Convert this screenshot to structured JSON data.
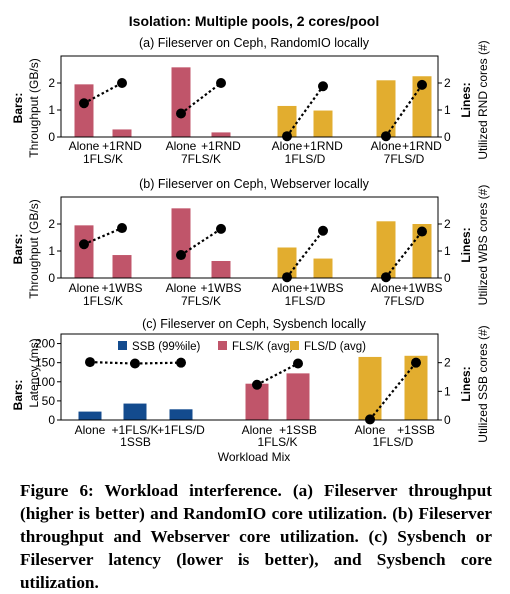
{
  "figure": {
    "title": "Isolation: Multiple pools, 2 cores/pool",
    "colors": {
      "red": "#c0556a",
      "gold": "#e2ad2f",
      "blue": "#134b8e"
    },
    "caption": "Figure 6: Workload interference. (a) Fileserver throughput (higher is better) and RandomIO core utilization. (b) Fileserver throughput and Webserver core utilization. (c) Sysbench or Fileserver latency (lower is better), and Sysbench core utilization."
  },
  "chart_data": [
    {
      "type": "bar",
      "title": "(a) Fileserver on Ceph, RandomIO locally",
      "ylabel": [
        "Bars:",
        "Throughput (GB/s)"
      ],
      "y2label": [
        "Lines:",
        "Utilized RND cores (#)"
      ],
      "ylim": [
        0,
        3
      ],
      "yticks": [
        0,
        1,
        2
      ],
      "y2lim": [
        0,
        3
      ],
      "y2ticks": [
        0,
        1,
        2
      ],
      "groups": [
        {
          "label": "1FLS/K",
          "categories": [
            "Alone",
            "+1RND"
          ],
          "bars": [
            1.95,
            0.28
          ],
          "line": [
            1.25,
            2.0
          ],
          "color": "red"
        },
        {
          "label": "7FLS/K",
          "categories": [
            "Alone",
            "+1RND"
          ],
          "bars": [
            2.58,
            0.17
          ],
          "line": [
            0.87,
            2.0
          ],
          "color": "red"
        },
        {
          "label": "1FLS/D",
          "categories": [
            "Alone",
            "+1RND"
          ],
          "bars": [
            1.15,
            0.98
          ],
          "line": [
            0.03,
            1.88
          ],
          "color": "gold"
        },
        {
          "label": "7FLS/D",
          "categories": [
            "Alone",
            "+1RND"
          ],
          "bars": [
            2.1,
            2.25
          ],
          "line": [
            0.03,
            1.93
          ],
          "color": "gold"
        }
      ]
    },
    {
      "type": "bar",
      "title": "(b) Fileserver on Ceph, Webserver locally",
      "ylabel": [
        "Bars:",
        "Throughput (GB/s)"
      ],
      "y2label": [
        "Lines:",
        "Utilized WBS cores (#)"
      ],
      "ylim": [
        0,
        3
      ],
      "yticks": [
        0,
        1,
        2
      ],
      "y2lim": [
        0,
        3
      ],
      "y2ticks": [
        0,
        1,
        2
      ],
      "groups": [
        {
          "label": "1FLS/K",
          "categories": [
            "Alone",
            "+1WBS"
          ],
          "bars": [
            1.95,
            0.85
          ],
          "line": [
            1.25,
            1.85
          ],
          "color": "red"
        },
        {
          "label": "7FLS/K",
          "categories": [
            "Alone",
            "+1WBS"
          ],
          "bars": [
            2.58,
            0.63
          ],
          "line": [
            0.85,
            1.82
          ],
          "color": "red"
        },
        {
          "label": "1FLS/D",
          "categories": [
            "Alone",
            "+1WBS"
          ],
          "bars": [
            1.13,
            0.72
          ],
          "line": [
            0.03,
            1.75
          ],
          "color": "gold"
        },
        {
          "label": "7FLS/D",
          "categories": [
            "Alone",
            "+1WBS"
          ],
          "bars": [
            2.1,
            2.0
          ],
          "line": [
            0.03,
            1.72
          ],
          "color": "gold"
        }
      ]
    },
    {
      "type": "bar",
      "title": "(c) Fileserver on Ceph, Sysbench locally",
      "xlabel": "Workload Mix",
      "ylabel": [
        "Bars:",
        "Latency (ms)"
      ],
      "y2label": [
        "Lines:",
        "Utilized SSB cores (#)"
      ],
      "ylim": [
        0,
        225
      ],
      "yticks": [
        0,
        50,
        100,
        150,
        200
      ],
      "y2lim": [
        0,
        3
      ],
      "y2ticks": [
        0,
        1,
        2
      ],
      "legend": {
        "placement": "top",
        "entries": [
          {
            "label": "SSB (99%ile)",
            "color": "blue"
          },
          {
            "label": "FLS/K (avg)",
            "color": "red"
          },
          {
            "label": "FLS/D (avg)",
            "color": "gold"
          }
        ]
      },
      "groups": [
        {
          "label": "1SSB",
          "categories": [
            "Alone",
            "+1FLS/K",
            "+1FLS/D"
          ],
          "bars": [
            22,
            43,
            28
          ],
          "line": [
            2.02,
            1.97,
            2.0
          ],
          "color": "blue"
        },
        {
          "label": "1FLS/K",
          "categories": [
            "Alone",
            "+1SSB"
          ],
          "bars": [
            95,
            122
          ],
          "line": [
            1.23,
            1.97
          ],
          "color": "red"
        },
        {
          "label": "1FLS/D",
          "categories": [
            "Alone",
            "+1SSB"
          ],
          "bars": [
            165,
            168
          ],
          "line": [
            0.02,
            2.0
          ],
          "color": "gold"
        }
      ]
    }
  ]
}
